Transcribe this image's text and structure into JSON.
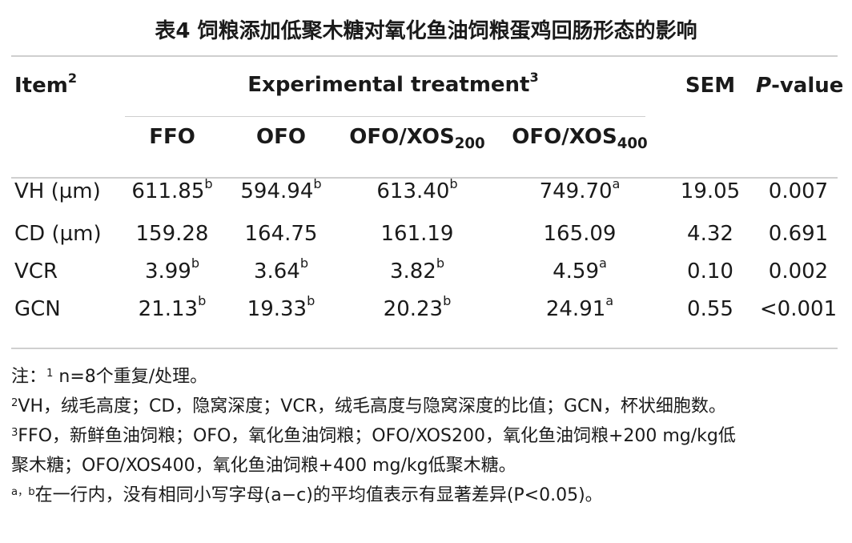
{
  "title": "表4 饲粮添加低聚木糖对氧化鱼油饲粮蛋鸡回肠形态的影响",
  "header": {
    "item": "Item",
    "item_sup": "2",
    "group": "Experimental treatment",
    "group_sup": "3",
    "sem": "SEM",
    "p_italic": "P",
    "p_rest": "-value",
    "treatments": [
      {
        "label": "FFO",
        "sub": ""
      },
      {
        "label": "OFO",
        "sub": ""
      },
      {
        "label": "OFO/XOS",
        "sub": "200"
      },
      {
        "label": "OFO/XOS",
        "sub": "400"
      }
    ]
  },
  "rows": [
    {
      "item": "VH (µm)",
      "v1": "611.85",
      "s1": "b",
      "v2": "594.94",
      "s2": "b",
      "v3": "613.40",
      "s3": "b",
      "v4": "749.70",
      "s4": "a",
      "sem": "19.05",
      "p": "0.007"
    },
    {
      "item": "CD (µm)",
      "v1": "159.28",
      "s1": "",
      "v2": "164.75",
      "s2": "",
      "v3": "161.19",
      "s3": "",
      "v4": "165.09",
      "s4": "",
      "sem": "4.32",
      "p": "0.691"
    },
    {
      "item": "VCR",
      "v1": "3.99",
      "s1": "b",
      "v2": "3.64",
      "s2": "b",
      "v3": "3.82",
      "s3": "b",
      "v4": "4.59",
      "s4": "a",
      "sem": "0.10",
      "p": "0.002"
    },
    {
      "item": "GCN",
      "v1": "21.13",
      "s1": "b",
      "v2": "19.33",
      "s2": "b",
      "v3": "20.23",
      "s3": "b",
      "v4": "24.91",
      "s4": "a",
      "sem": "0.55",
      "p": "<0.001"
    }
  ],
  "notes": {
    "n1_prefix": "注：",
    "n1_sup": "1",
    "n1_text": " n=8个重复/处理。",
    "n2_sup": "2",
    "n2_text": "VH，绒毛高度；CD，隐窝深度；VCR，绒毛高度与隐窝深度的比值；GCN，杯状细胞数。",
    "n3_sup": "3",
    "n3_text": "FFO，新鲜鱼油饲粮；OFO，氧化鱼油饲粮；OFO/XOS200，氧化鱼油饲粮+200 mg/kg低",
    "n3_cont": "聚木糖；OFO/XOS400，氧化鱼油饲粮+400 mg/kg低聚木糖。",
    "n4_sup": "a，b",
    "n4_text": "在一行内，没有相同小写字母(a−c)的平均值表示有显著差异(P<0.05)。"
  }
}
